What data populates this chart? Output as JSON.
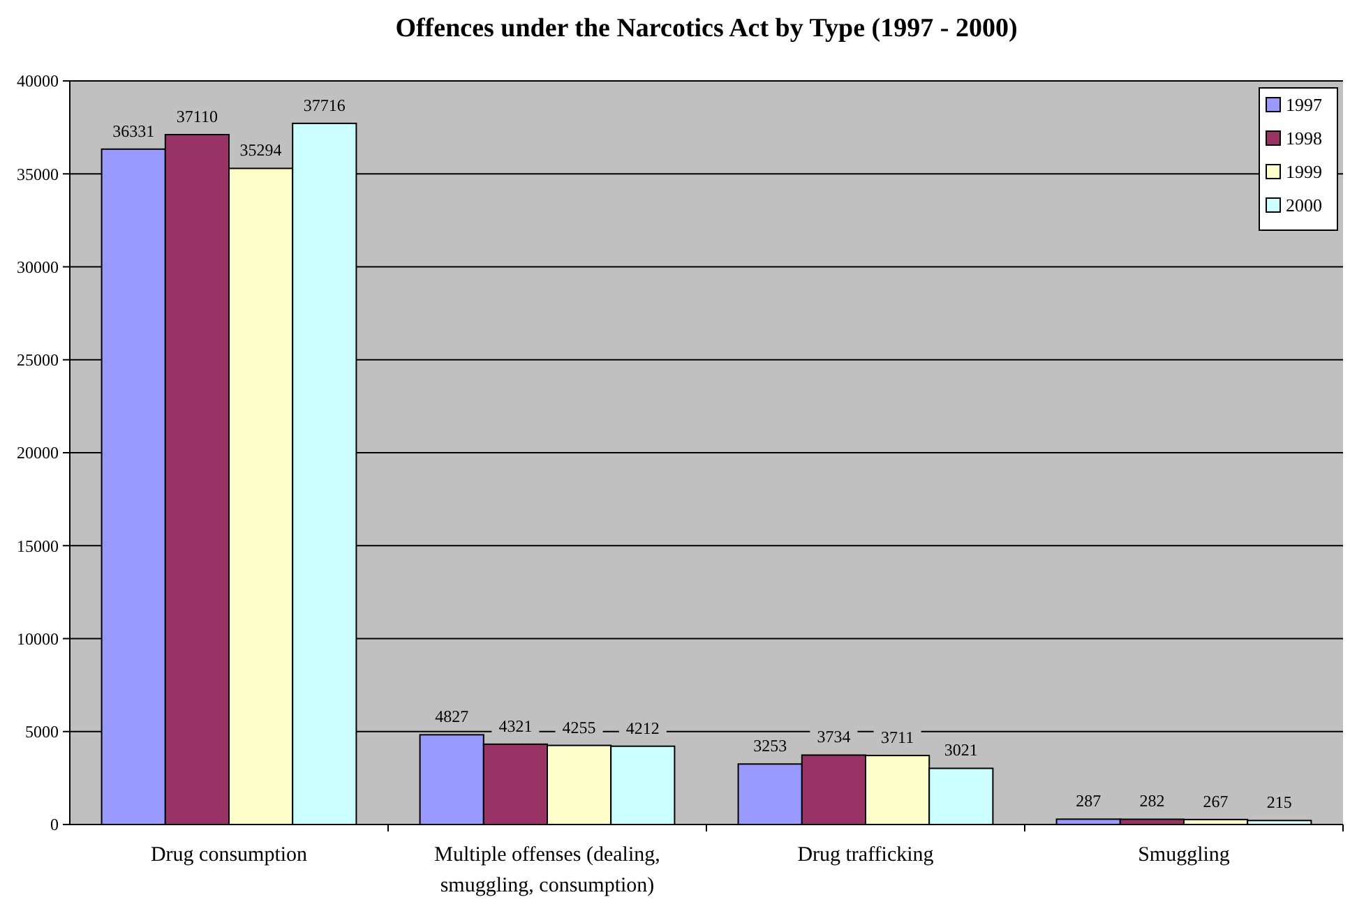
{
  "chart_data": {
    "type": "bar",
    "title": "Offences under the Narcotics Act by Type (1997 - 2000)",
    "categories": [
      "Drug consumption",
      "Multiple offenses (dealing, smuggling, consumption)",
      "Drug trafficking",
      "Smuggling"
    ],
    "series": [
      {
        "name": "1997",
        "color": "#9999ff",
        "values": [
          36331,
          4827,
          3253,
          287
        ]
      },
      {
        "name": "1998",
        "color": "#993366",
        "values": [
          37110,
          4321,
          3734,
          282
        ]
      },
      {
        "name": "1999",
        "color": "#ffffcc",
        "values": [
          35294,
          4255,
          3711,
          267
        ]
      },
      {
        "name": "2000",
        "color": "#ccffff",
        "values": [
          37716,
          4212,
          3021,
          215
        ]
      }
    ],
    "ylim": [
      0,
      40000
    ],
    "yticks": [
      0,
      5000,
      10000,
      15000,
      20000,
      25000,
      30000,
      35000,
      40000
    ],
    "grid": "y",
    "legend": "top right",
    "data_labels": true
  }
}
